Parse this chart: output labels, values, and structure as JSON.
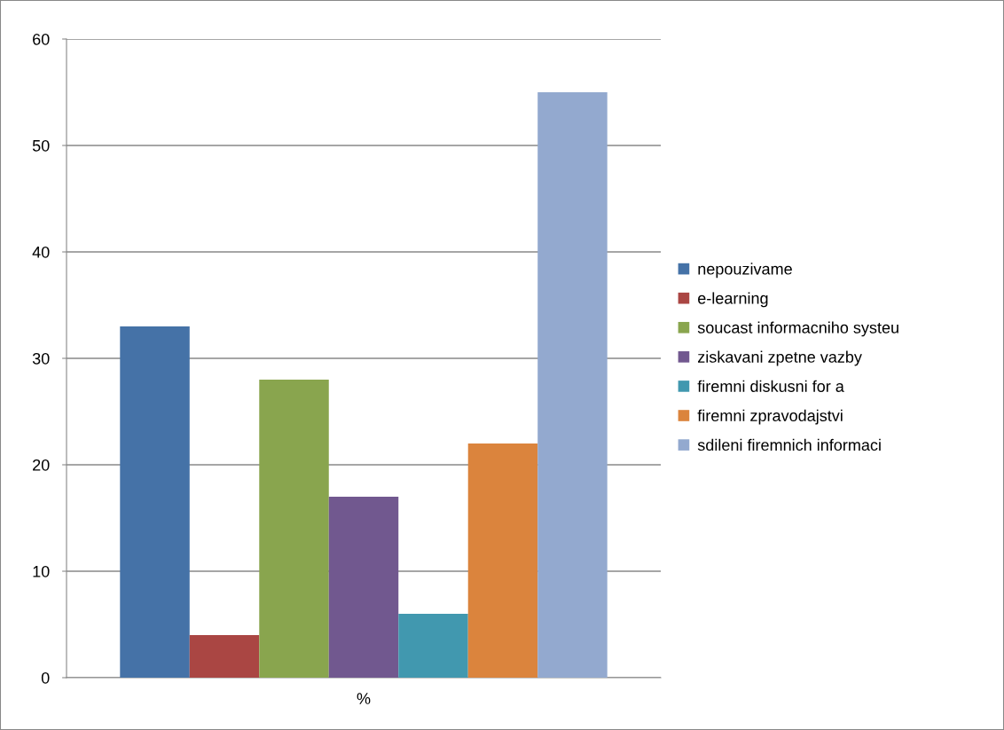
{
  "chart_data": {
    "type": "bar",
    "categories": [
      "%"
    ],
    "series": [
      {
        "name": "nepouzivame",
        "color": "#4572a7",
        "values": [
          33
        ]
      },
      {
        "name": "e-learning",
        "color": "#aa4643",
        "values": [
          4
        ]
      },
      {
        "name": "soucast informacniho systeu",
        "color": "#89a54e",
        "values": [
          28
        ]
      },
      {
        "name": "ziskavani zpetne vazby",
        "color": "#71588f",
        "values": [
          17
        ]
      },
      {
        "name": "firemni diskusni for a",
        "color": "#4198af",
        "values": [
          6
        ]
      },
      {
        "name": "firemni zpravodajstvi",
        "color": "#db843d",
        "values": [
          22
        ]
      },
      {
        "name": "sdileni firemnich informaci",
        "color": "#93a9cf",
        "values": [
          55
        ]
      }
    ],
    "ylim": [
      0,
      60
    ],
    "yticks": [
      0,
      10,
      20,
      30,
      40,
      50,
      60
    ],
    "grid": "y",
    "legend": "right"
  }
}
